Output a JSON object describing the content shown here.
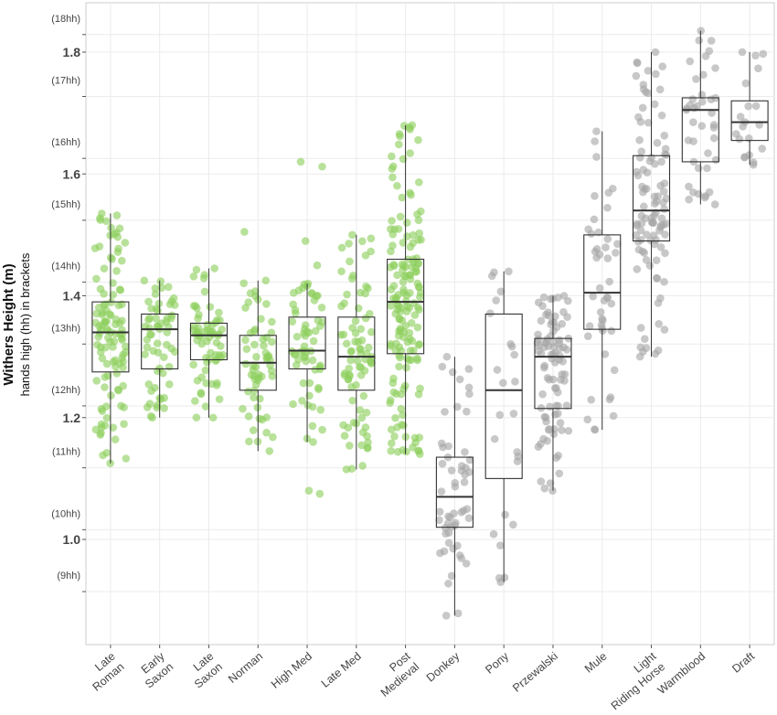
{
  "chart_data": {
    "type": "box-jitter",
    "ylabel": "Withers Height (m)",
    "ylabel_sub": "hands high (hh) in brackets",
    "ylim": [
      0.83,
      1.87
    ],
    "y_ticks_m": [
      {
        "value": 1.0,
        "label": "1.0"
      },
      {
        "value": 1.2,
        "label": "1.2"
      },
      {
        "value": 1.4,
        "label": "1.4"
      },
      {
        "value": 1.6,
        "label": "1.6"
      },
      {
        "value": 1.8,
        "label": "1.8"
      }
    ],
    "y_ticks_hh": [
      {
        "value": 0.9144,
        "label": "(9hh)"
      },
      {
        "value": 1.016,
        "label": "(10hh)"
      },
      {
        "value": 1.1176,
        "label": "(11hh)"
      },
      {
        "value": 1.2192,
        "label": "(12hh)"
      },
      {
        "value": 1.3208,
        "label": "(13hh)"
      },
      {
        "value": 1.4224,
        "label": "(14hh)"
      },
      {
        "value": 1.524,
        "label": "(15hh)"
      },
      {
        "value": 1.6256,
        "label": "(16hh)"
      },
      {
        "value": 1.7272,
        "label": "(17hh)"
      },
      {
        "value": 1.8288,
        "label": "(18hh)"
      }
    ],
    "colors": {
      "archaeological": "#8ccf5c",
      "modern": "#a6a6a6",
      "box": "#333333",
      "grid": "#ebebeb",
      "axis": "#cccccc"
    },
    "categories": [
      {
        "label": [
          "Late",
          "Roman"
        ],
        "group": "archaeological",
        "min": 1.125,
        "q1": 1.275,
        "median": 1.34,
        "q3": 1.39,
        "max": 1.535,
        "n": 110,
        "outliers": []
      },
      {
        "label": [
          "Early",
          "Saxon"
        ],
        "group": "archaeological",
        "min": 1.2,
        "q1": 1.28,
        "median": 1.345,
        "q3": 1.37,
        "max": 1.425,
        "n": 60,
        "outliers": []
      },
      {
        "label": [
          "Late",
          "Saxon"
        ],
        "group": "archaeological",
        "min": 1.2,
        "q1": 1.295,
        "median": 1.335,
        "q3": 1.355,
        "max": 1.445,
        "n": 65,
        "outliers": []
      },
      {
        "label": [
          "Norman"
        ],
        "group": "archaeological",
        "min": 1.145,
        "q1": 1.245,
        "median": 1.29,
        "q3": 1.335,
        "max": 1.425,
        "n": 60,
        "outliers": [
          1.505
        ]
      },
      {
        "label": [
          "High Med"
        ],
        "group": "archaeological",
        "min": 1.16,
        "q1": 1.28,
        "median": 1.31,
        "q3": 1.365,
        "max": 1.42,
        "n": 60,
        "outliers": [
          1.62,
          1.612,
          1.08,
          1.075,
          1.49,
          1.45
        ]
      },
      {
        "label": [
          "Late Med"
        ],
        "group": "archaeological",
        "min": 1.115,
        "q1": 1.245,
        "median": 1.3,
        "q3": 1.365,
        "max": 1.5,
        "n": 80,
        "outliers": []
      },
      {
        "label": [
          "Post",
          "Medieval"
        ],
        "group": "archaeological",
        "min": 1.14,
        "q1": 1.305,
        "median": 1.39,
        "q3": 1.46,
        "max": 1.68,
        "n": 160,
        "outliers": []
      },
      {
        "label": [
          "Donkey"
        ],
        "group": "modern",
        "min": 0.875,
        "q1": 1.02,
        "median": 1.07,
        "q3": 1.135,
        "max": 1.3,
        "n": 55,
        "outliers": []
      },
      {
        "label": [
          "Pony"
        ],
        "group": "modern",
        "min": 0.93,
        "q1": 1.1,
        "median": 1.245,
        "q3": 1.37,
        "max": 1.44,
        "n": 25,
        "outliers": []
      },
      {
        "label": [
          "Przewalski"
        ],
        "group": "modern",
        "min": 1.08,
        "q1": 1.215,
        "median": 1.3,
        "q3": 1.33,
        "max": 1.4,
        "n": 90,
        "outliers": []
      },
      {
        "label": [
          "Mule"
        ],
        "group": "modern",
        "min": 1.18,
        "q1": 1.345,
        "median": 1.405,
        "q3": 1.5,
        "max": 1.67,
        "n": 45,
        "outliers": []
      },
      {
        "label": [
          "Light",
          "Riding Horse"
        ],
        "group": "modern",
        "min": 1.3,
        "q1": 1.49,
        "median": 1.54,
        "q3": 1.63,
        "max": 1.8,
        "n": 100,
        "outliers": []
      },
      {
        "label": [
          "Warmblood"
        ],
        "group": "modern",
        "min": 1.55,
        "q1": 1.62,
        "median": 1.705,
        "q3": 1.725,
        "max": 1.835,
        "n": 40,
        "outliers": []
      },
      {
        "label": [
          "Draft"
        ],
        "group": "modern",
        "min": 1.615,
        "q1": 1.655,
        "median": 1.685,
        "q3": 1.72,
        "max": 1.8,
        "n": 20,
        "outliers": []
      }
    ]
  }
}
